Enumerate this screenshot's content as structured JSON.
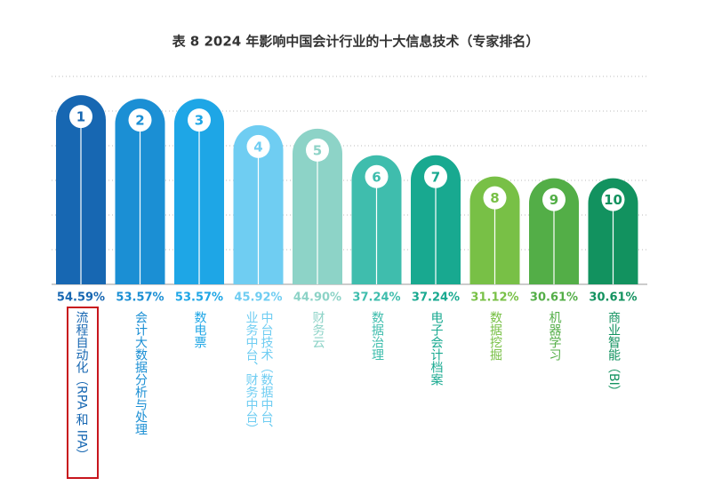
{
  "chart_data": {
    "type": "bar",
    "title": "表 8  2024 年影响中国会计行业的十大信息技术（专家排名）",
    "categories": [
      "流程自动化（RPA 和 IPA）",
      "会计大数据分析与处理",
      "数电票",
      "中台技术（数据中台、业务中台、财务中台）",
      "财务云",
      "数据治理",
      "电子会计档案",
      "数据挖掘",
      "机器学习",
      "商业智能（BI）"
    ],
    "ranks": [
      1,
      2,
      3,
      4,
      5,
      6,
      7,
      8,
      9,
      10
    ],
    "values": [
      54.59,
      53.57,
      53.57,
      45.92,
      44.9,
      37.24,
      37.24,
      31.12,
      30.61,
      30.61
    ],
    "value_labels": [
      "54.59%",
      "53.57%",
      "53.57%",
      "45.92%",
      "44.90%",
      "37.24%",
      "37.24%",
      "31.12%",
      "30.61%",
      "30.61%"
    ],
    "colors": [
      "#1767b2",
      "#1b8fd4",
      "#1ea6e6",
      "#6fcdf2",
      "#8dd3c7",
      "#3fbdad",
      "#18a990",
      "#78c046",
      "#53ae47",
      "#12925f"
    ],
    "ylim": [
      0,
      60
    ],
    "yticks": [
      10,
      20,
      30,
      40,
      50,
      60
    ],
    "grid": true
  }
}
